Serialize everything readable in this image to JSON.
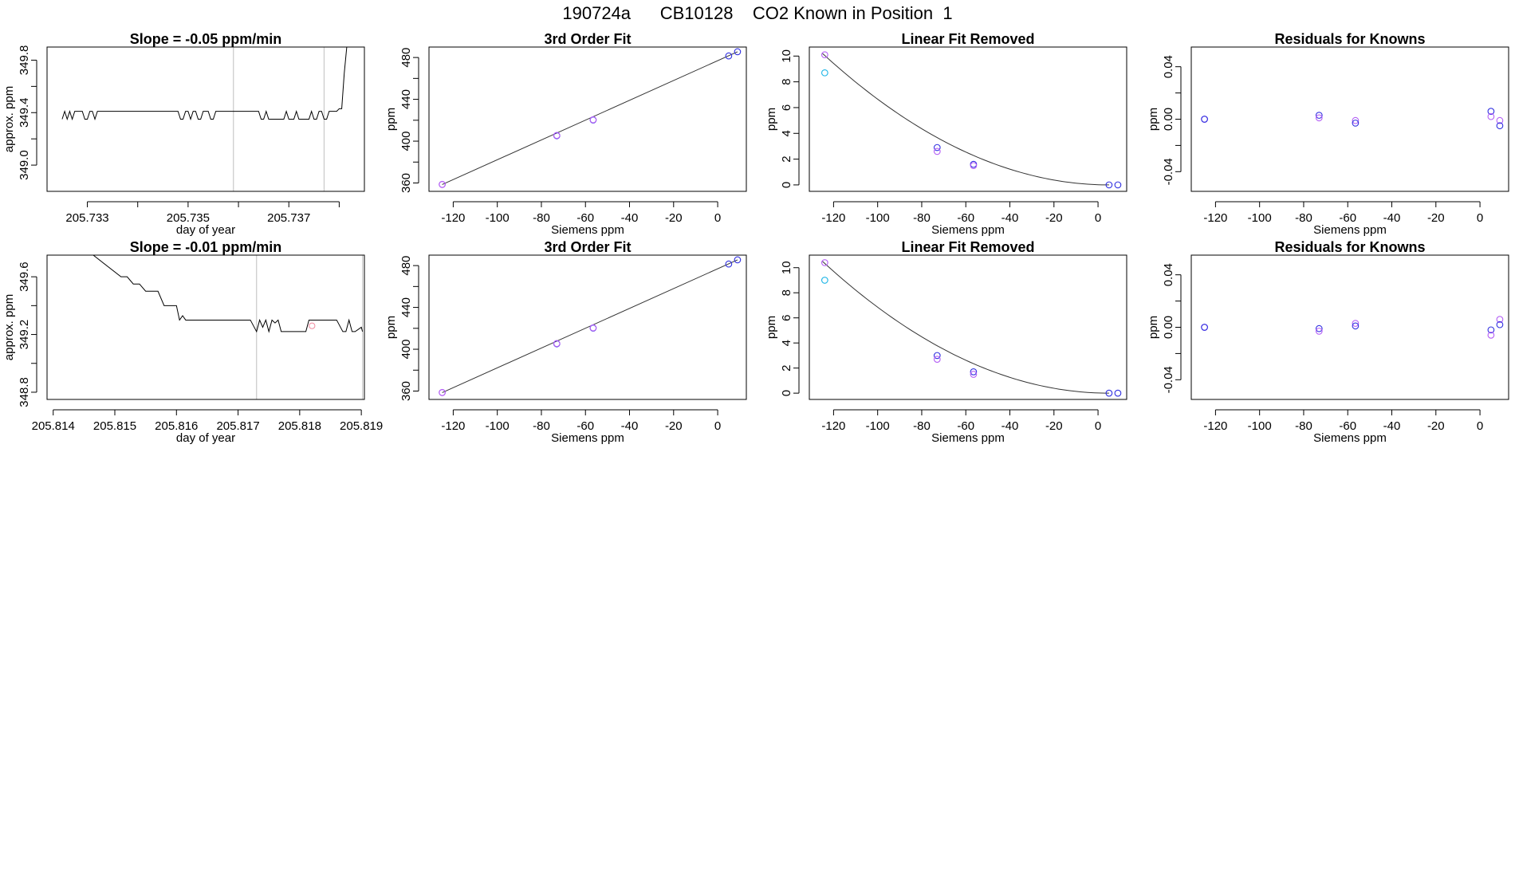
{
  "figure_title": "190724a      CB10128    CO2 Known in Position  1",
  "colors": {
    "frame": "#000000",
    "line": "#000000",
    "fit_curve": "#333333",
    "marker_violet": "#b45ff5",
    "marker_blue": "#3030e0",
    "marker_cyan": "#1ab4e6",
    "marker_pink": "#f08ca0",
    "vline": "#c8c8c8"
  },
  "chart_data": [
    {
      "id": "r1-timeseries",
      "type": "line",
      "title": "Slope =  -0.05  ppm/min",
      "xlabel": "day of year",
      "ylabel": "approx. ppm",
      "xlim": [
        205.7322,
        205.7385
      ],
      "ylim": [
        348.8,
        349.9
      ],
      "xticks": [
        205.733,
        205.734,
        205.735,
        205.736,
        205.737,
        205.738
      ],
      "xticklabels": [
        "205.733",
        "",
        "205.735",
        "",
        "205.737",
        ""
      ],
      "yticks": [
        349.0,
        349.2,
        349.4,
        349.6,
        349.8
      ],
      "yticklabels": [
        "349.0",
        "",
        "349.4",
        "",
        "349.8"
      ],
      "vlines": [
        205.7359,
        205.7377
      ],
      "series": [
        {
          "name": "approx. ppm",
          "x": [
            205.7325,
            205.73255,
            205.7326,
            205.73265,
            205.7327,
            205.73275,
            205.7328,
            205.7329,
            205.73295,
            205.733,
            205.73305,
            205.7331,
            205.73315,
            205.7332,
            205.7333,
            205.73335,
            205.7334,
            205.73345,
            205.7335,
            205.73355,
            205.7336,
            205.7337,
            205.7338,
            205.7339,
            205.734,
            205.7341,
            205.7342,
            205.7343,
            205.7344,
            205.7345,
            205.7346,
            205.7347,
            205.7348,
            205.73485,
            205.7349,
            205.73495,
            205.735,
            205.73505,
            205.7351,
            205.73515,
            205.7352,
            205.73525,
            205.7353,
            205.7354,
            205.73545,
            205.7355,
            205.73555,
            205.7356,
            205.73565,
            205.7357,
            205.7358,
            205.7359,
            205.736,
            205.7361,
            205.7362,
            205.7363,
            205.7364,
            205.73645,
            205.7365,
            205.73655,
            205.7366,
            205.73665,
            205.7367,
            205.7368,
            205.7369,
            205.73695,
            205.737,
            205.73705,
            205.7371,
            205.73715,
            205.7372,
            205.7373,
            205.73735,
            205.7374,
            205.73745,
            205.7375,
            205.73755,
            205.7376,
            205.73765,
            205.7377,
            205.73775,
            205.7378,
            205.73785,
            205.7379,
            205.73795,
            205.738,
            205.73805,
            205.7381,
            205.73815,
            205.7382
          ],
          "y": [
            349.35,
            349.41,
            349.35,
            349.41,
            349.35,
            349.41,
            349.41,
            349.41,
            349.35,
            349.35,
            349.41,
            349.41,
            349.35,
            349.41,
            349.41,
            349.41,
            349.41,
            349.41,
            349.41,
            349.41,
            349.41,
            349.41,
            349.41,
            349.41,
            349.41,
            349.41,
            349.41,
            349.41,
            349.41,
            349.41,
            349.41,
            349.41,
            349.41,
            349.35,
            349.35,
            349.41,
            349.41,
            349.35,
            349.41,
            349.41,
            349.35,
            349.35,
            349.41,
            349.41,
            349.35,
            349.35,
            349.41,
            349.41,
            349.41,
            349.41,
            349.41,
            349.41,
            349.41,
            349.41,
            349.41,
            349.41,
            349.41,
            349.35,
            349.35,
            349.41,
            349.35,
            349.35,
            349.35,
            349.35,
            349.35,
            349.41,
            349.35,
            349.35,
            349.35,
            349.41,
            349.35,
            349.35,
            349.35,
            349.35,
            349.41,
            349.35,
            349.35,
            349.41,
            349.41,
            349.35,
            349.35,
            349.41,
            349.41,
            349.41,
            349.41,
            349.43,
            349.43,
            349.7,
            349.9,
            349.95
          ]
        }
      ]
    },
    {
      "id": "r1-fit",
      "type": "scatter",
      "title": "3rd Order Fit",
      "xlabel": "Siemens ppm",
      "ylabel": "ppm",
      "xlim": [
        -131,
        13
      ],
      "ylim": [
        352,
        490
      ],
      "xticks": [
        -120,
        -100,
        -80,
        -60,
        -40,
        -20,
        0
      ],
      "xticklabels": [
        "-120",
        "-100",
        "-80",
        "-60",
        "-40",
        "-20",
        "0"
      ],
      "yticks": [
        360,
        380,
        400,
        420,
        440,
        460,
        480
      ],
      "yticklabels": [
        "360",
        "",
        "400",
        "",
        "440",
        "",
        "480"
      ],
      "curve": {
        "x": [
          -125,
          9
        ],
        "y": [
          358.5,
          485.5
        ]
      },
      "points": [
        {
          "x": -125.0,
          "y": 358.5,
          "color": "marker_violet"
        },
        {
          "x": -125.0,
          "y": 358.7,
          "color": "marker_violet"
        },
        {
          "x": -73.0,
          "y": 405.2,
          "color": "marker_blue"
        },
        {
          "x": -73.0,
          "y": 405.5,
          "color": "marker_violet"
        },
        {
          "x": -56.5,
          "y": 420.2,
          "color": "marker_blue"
        },
        {
          "x": -56.5,
          "y": 420.5,
          "color": "marker_violet"
        },
        {
          "x": 5.0,
          "y": 481.5,
          "color": "marker_blue"
        },
        {
          "x": 9.0,
          "y": 485.5,
          "color": "marker_blue"
        }
      ]
    },
    {
      "id": "r1-linfit",
      "type": "scatter",
      "title": "Linear Fit Removed",
      "xlabel": "Siemens ppm",
      "ylabel": "ppm",
      "xlim": [
        -131,
        13
      ],
      "ylim": [
        -0.5,
        10.7
      ],
      "xticks": [
        -120,
        -100,
        -80,
        -60,
        -40,
        -20,
        0
      ],
      "xticklabels": [
        "-120",
        "-100",
        "-80",
        "-60",
        "-40",
        "-20",
        "0"
      ],
      "yticks": [
        0,
        2,
        4,
        6,
        8,
        10
      ],
      "yticklabels": [
        "0",
        "2",
        "4",
        "6",
        "8",
        "10"
      ],
      "curve_fn": {
        "peak_x": -125,
        "peak_y": 10.2,
        "min_x": 5
      },
      "points": [
        {
          "x": -124.0,
          "y": 10.1,
          "color": "marker_violet"
        },
        {
          "x": -124.0,
          "y": 8.7,
          "color": "marker_cyan"
        },
        {
          "x": -73.0,
          "y": 2.9,
          "color": "marker_blue"
        },
        {
          "x": -73.0,
          "y": 2.6,
          "color": "marker_violet"
        },
        {
          "x": -56.5,
          "y": 1.6,
          "color": "marker_blue"
        },
        {
          "x": -56.5,
          "y": 1.5,
          "color": "marker_violet"
        },
        {
          "x": 5.0,
          "y": 0.0,
          "color": "marker_blue"
        },
        {
          "x": 9.0,
          "y": 0.0,
          "color": "marker_blue"
        }
      ]
    },
    {
      "id": "r1-resid",
      "type": "scatter",
      "title": "Residuals for Knowns",
      "xlabel": "Siemens ppm",
      "ylabel": "ppm",
      "xlim": [
        -131,
        13
      ],
      "ylim": [
        -0.055,
        0.055
      ],
      "xticks": [
        -120,
        -100,
        -80,
        -60,
        -40,
        -20,
        0
      ],
      "xticklabels": [
        "-120",
        "-100",
        "-80",
        "-60",
        "-40",
        "-20",
        "0"
      ],
      "yticks": [
        -0.04,
        -0.02,
        0.0,
        0.02,
        0.04
      ],
      "yticklabels": [
        "-0.04",
        "",
        "0.00",
        "",
        "0.04"
      ],
      "points": [
        {
          "x": -125.0,
          "y": 0.0,
          "color": "marker_violet"
        },
        {
          "x": -125.0,
          "y": 0.0,
          "color": "marker_blue"
        },
        {
          "x": -73.0,
          "y": 0.003,
          "color": "marker_blue"
        },
        {
          "x": -73.0,
          "y": 0.001,
          "color": "marker_violet"
        },
        {
          "x": -56.5,
          "y": -0.001,
          "color": "marker_violet"
        },
        {
          "x": -56.5,
          "y": -0.003,
          "color": "marker_blue"
        },
        {
          "x": 5.0,
          "y": 0.006,
          "color": "marker_blue"
        },
        {
          "x": 5.0,
          "y": 0.002,
          "color": "marker_violet"
        },
        {
          "x": 9.0,
          "y": -0.001,
          "color": "marker_violet"
        },
        {
          "x": 9.0,
          "y": -0.005,
          "color": "marker_blue"
        }
      ]
    },
    {
      "id": "r2-timeseries",
      "type": "line",
      "title": "Slope =  -0.01  ppm/min",
      "xlabel": "day of year",
      "ylabel": "approx. ppm",
      "xlim": [
        205.8139,
        205.81905
      ],
      "ylim": [
        348.75,
        349.75
      ],
      "xticks": [
        205.814,
        205.815,
        205.816,
        205.817,
        205.818,
        205.819
      ],
      "xticklabels": [
        "205.814",
        "205.815",
        "205.816",
        "205.817",
        "205.818",
        "205.819"
      ],
      "yticks": [
        348.8,
        349.0,
        349.2,
        349.4,
        349.6
      ],
      "yticklabels": [
        "348.8",
        "",
        "349.2",
        "",
        "349.6"
      ],
      "vlines": [
        205.8173,
        205.81902
      ],
      "markers": [
        {
          "x": 205.8182,
          "y": 349.26,
          "color": "marker_pink"
        }
      ],
      "series": [
        {
          "name": "approx. ppm",
          "x": [
            205.81465,
            205.8151,
            205.8152,
            205.8153,
            205.8154,
            205.8155,
            205.81555,
            205.8157,
            205.8158,
            205.8159,
            205.816,
            205.81605,
            205.8161,
            205.81615,
            205.8162,
            205.8163,
            205.8164,
            205.8166,
            205.8168,
            205.817,
            205.8172,
            205.8173,
            205.81735,
            205.8174,
            205.81745,
            205.8175,
            205.81755,
            205.8176,
            205.81765,
            205.8177,
            205.8178,
            205.8179,
            205.818,
            205.8181,
            205.81815,
            205.8182,
            205.8183,
            205.8184,
            205.8185,
            205.8186,
            205.8187,
            205.81875,
            205.8188,
            205.81885,
            205.8189,
            205.819,
            205.81902
          ],
          "y": [
            349.75,
            349.6,
            349.6,
            349.55,
            349.55,
            349.5,
            349.5,
            349.5,
            349.4,
            349.4,
            349.4,
            349.3,
            349.33,
            349.3,
            349.3,
            349.3,
            349.3,
            349.3,
            349.3,
            349.3,
            349.3,
            349.22,
            349.3,
            349.25,
            349.3,
            349.22,
            349.3,
            349.28,
            349.3,
            349.22,
            349.22,
            349.22,
            349.22,
            349.22,
            349.3,
            349.3,
            349.3,
            349.3,
            349.3,
            349.3,
            349.22,
            349.22,
            349.3,
            349.22,
            349.22,
            349.25,
            349.22
          ]
        }
      ]
    },
    {
      "id": "r2-fit",
      "type": "scatter",
      "title": "3rd Order Fit",
      "xlabel": "Siemens ppm",
      "ylabel": "ppm",
      "xlim": [
        -131,
        13
      ],
      "ylim": [
        352,
        490
      ],
      "xticks": [
        -120,
        -100,
        -80,
        -60,
        -40,
        -20,
        0
      ],
      "xticklabels": [
        "-120",
        "-100",
        "-80",
        "-60",
        "-40",
        "-20",
        "0"
      ],
      "yticks": [
        360,
        380,
        400,
        420,
        440,
        460,
        480
      ],
      "yticklabels": [
        "360",
        "",
        "400",
        "",
        "440",
        "",
        "480"
      ],
      "curve": {
        "x": [
          -125,
          9
        ],
        "y": [
          358.5,
          485.5
        ]
      },
      "points": [
        {
          "x": -125.0,
          "y": 358.5,
          "color": "marker_violet"
        },
        {
          "x": -125.0,
          "y": 358.7,
          "color": "marker_violet"
        },
        {
          "x": -73.0,
          "y": 405.2,
          "color": "marker_blue"
        },
        {
          "x": -73.0,
          "y": 405.5,
          "color": "marker_violet"
        },
        {
          "x": -56.5,
          "y": 420.2,
          "color": "marker_blue"
        },
        {
          "x": -56.5,
          "y": 420.5,
          "color": "marker_violet"
        },
        {
          "x": 5.0,
          "y": 481.5,
          "color": "marker_blue"
        },
        {
          "x": 9.0,
          "y": 485.5,
          "color": "marker_blue"
        }
      ]
    },
    {
      "id": "r2-linfit",
      "type": "scatter",
      "title": "Linear Fit Removed",
      "xlabel": "Siemens ppm",
      "ylabel": "ppm",
      "xlim": [
        -131,
        13
      ],
      "ylim": [
        -0.5,
        11.0
      ],
      "xticks": [
        -120,
        -100,
        -80,
        -60,
        -40,
        -20,
        0
      ],
      "xticklabels": [
        "-120",
        "-100",
        "-80",
        "-60",
        "-40",
        "-20",
        "0"
      ],
      "yticks": [
        0,
        2,
        4,
        6,
        8,
        10
      ],
      "yticklabels": [
        "0",
        "2",
        "4",
        "6",
        "8",
        "10"
      ],
      "curve_fn": {
        "peak_x": -125,
        "peak_y": 10.5,
        "min_x": 5
      },
      "points": [
        {
          "x": -124.0,
          "y": 10.4,
          "color": "marker_violet"
        },
        {
          "x": -124.0,
          "y": 9.0,
          "color": "marker_cyan"
        },
        {
          "x": -73.0,
          "y": 3.0,
          "color": "marker_blue"
        },
        {
          "x": -73.0,
          "y": 2.7,
          "color": "marker_violet"
        },
        {
          "x": -56.5,
          "y": 1.7,
          "color": "marker_blue"
        },
        {
          "x": -56.5,
          "y": 1.5,
          "color": "marker_violet"
        },
        {
          "x": 5.0,
          "y": 0.0,
          "color": "marker_blue"
        },
        {
          "x": 9.0,
          "y": 0.0,
          "color": "marker_blue"
        }
      ]
    },
    {
      "id": "r2-resid",
      "type": "scatter",
      "title": "Residuals for Knowns",
      "xlabel": "Siemens ppm",
      "ylabel": "ppm",
      "xlim": [
        -131,
        13
      ],
      "ylim": [
        -0.055,
        0.055
      ],
      "xticks": [
        -120,
        -100,
        -80,
        -60,
        -40,
        -20,
        0
      ],
      "xticklabels": [
        "-120",
        "-100",
        "-80",
        "-60",
        "-40",
        "-20",
        "0"
      ],
      "yticks": [
        -0.04,
        -0.02,
        0.0,
        0.02,
        0.04
      ],
      "yticklabels": [
        "-0.04",
        "",
        "0.00",
        "",
        "0.04"
      ],
      "points": [
        {
          "x": -125.0,
          "y": 0.0,
          "color": "marker_violet"
        },
        {
          "x": -125.0,
          "y": 0.0,
          "color": "marker_blue"
        },
        {
          "x": -73.0,
          "y": -0.001,
          "color": "marker_blue"
        },
        {
          "x": -73.0,
          "y": -0.003,
          "color": "marker_violet"
        },
        {
          "x": -56.5,
          "y": 0.003,
          "color": "marker_violet"
        },
        {
          "x": -56.5,
          "y": 0.001,
          "color": "marker_blue"
        },
        {
          "x": 5.0,
          "y": -0.002,
          "color": "marker_blue"
        },
        {
          "x": 5.0,
          "y": -0.006,
          "color": "marker_violet"
        },
        {
          "x": 9.0,
          "y": 0.006,
          "color": "marker_violet"
        },
        {
          "x": 9.0,
          "y": 0.002,
          "color": "marker_blue"
        }
      ]
    }
  ]
}
